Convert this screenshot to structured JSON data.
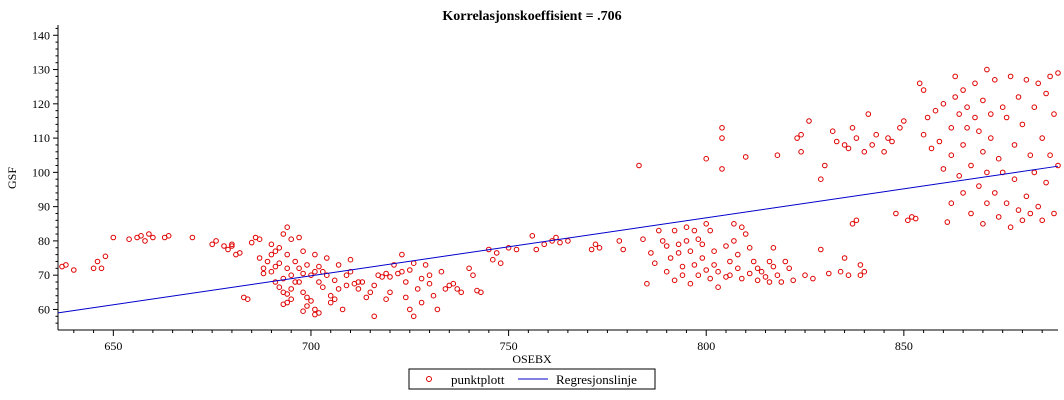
{
  "chart_data": {
    "type": "scatter",
    "title": "Korrelasjonskoeffisient =  .706",
    "xlabel": "OSEBX",
    "ylabel": "GSF",
    "xlim": [
      636,
      889
    ],
    "ylim": [
      54,
      143
    ],
    "xticks": [
      650,
      700,
      750,
      800,
      850
    ],
    "yticks": [
      60,
      70,
      80,
      90,
      100,
      110,
      120,
      130,
      140
    ],
    "legend": [
      "punktplott",
      "Regresjonslinje"
    ],
    "legend_position": "bottom",
    "grid": false,
    "colors": {
      "points": "#e00000",
      "line": "#0000cc"
    },
    "regression": {
      "x": [
        636,
        889
      ],
      "y": [
        59,
        101.8
      ]
    },
    "series": [
      {
        "name": "punktplott",
        "marker": "circle",
        "points": [
          [
            637,
            72.5
          ],
          [
            638,
            73
          ],
          [
            640,
            71.5
          ],
          [
            645,
            72
          ],
          [
            646,
            74
          ],
          [
            647,
            72
          ],
          [
            648,
            75.5
          ],
          [
            650,
            81
          ],
          [
            654,
            80.5
          ],
          [
            656,
            81
          ],
          [
            657,
            81.5
          ],
          [
            658,
            80
          ],
          [
            659,
            82
          ],
          [
            660,
            81
          ],
          [
            663,
            81
          ],
          [
            664,
            81.5
          ],
          [
            670,
            81
          ],
          [
            675,
            79
          ],
          [
            676,
            80
          ],
          [
            678,
            78.5
          ],
          [
            679,
            77.5
          ],
          [
            680,
            78.5
          ],
          [
            680,
            79
          ],
          [
            681,
            76
          ],
          [
            682,
            76.5
          ],
          [
            683,
            63.5
          ],
          [
            684,
            63
          ],
          [
            685,
            79.5
          ],
          [
            686,
            81
          ],
          [
            687,
            80.5
          ],
          [
            687,
            75
          ],
          [
            688,
            72
          ],
          [
            688,
            70.5
          ],
          [
            689,
            74
          ],
          [
            690,
            79
          ],
          [
            690,
            76
          ],
          [
            690,
            71
          ],
          [
            691,
            68
          ],
          [
            691,
            72.5
          ],
          [
            691,
            77
          ],
          [
            692,
            78
          ],
          [
            692,
            73.5
          ],
          [
            692,
            66.5
          ],
          [
            693,
            82
          ],
          [
            693,
            69
          ],
          [
            693,
            65
          ],
          [
            693,
            61.5
          ],
          [
            694,
            84
          ],
          [
            694,
            76
          ],
          [
            694,
            72
          ],
          [
            694,
            64.5
          ],
          [
            694,
            62
          ],
          [
            695,
            80.5
          ],
          [
            695,
            70
          ],
          [
            695,
            66
          ],
          [
            695,
            63
          ],
          [
            696,
            74
          ],
          [
            696,
            68
          ],
          [
            697,
            81
          ],
          [
            697,
            72
          ],
          [
            697,
            68
          ],
          [
            698,
            77
          ],
          [
            698,
            70.5
          ],
          [
            698,
            65
          ],
          [
            698,
            59.5
          ],
          [
            699,
            73
          ],
          [
            699,
            63.5
          ],
          [
            699,
            61
          ],
          [
            700,
            70
          ],
          [
            700,
            62.5
          ],
          [
            701,
            76
          ],
          [
            701,
            71
          ],
          [
            701,
            60
          ],
          [
            701,
            58.5
          ],
          [
            702,
            72.5
          ],
          [
            702,
            68
          ],
          [
            702,
            59
          ],
          [
            703,
            71
          ],
          [
            703,
            66.5
          ],
          [
            704,
            75
          ],
          [
            704,
            70
          ],
          [
            705,
            64
          ],
          [
            705,
            62
          ],
          [
            706,
            68.5
          ],
          [
            706,
            63
          ],
          [
            707,
            73
          ],
          [
            707,
            66
          ],
          [
            708,
            60
          ],
          [
            709,
            70
          ],
          [
            709,
            67
          ],
          [
            710,
            74.5
          ],
          [
            710,
            71
          ],
          [
            711,
            67.5
          ],
          [
            712,
            68
          ],
          [
            712,
            66
          ],
          [
            713,
            68
          ],
          [
            714,
            63.5
          ],
          [
            715,
            65
          ],
          [
            716,
            58
          ],
          [
            716,
            67
          ],
          [
            717,
            70
          ],
          [
            718,
            69.5
          ],
          [
            719,
            70.5
          ],
          [
            719,
            63
          ],
          [
            720,
            69.5
          ],
          [
            720,
            65
          ],
          [
            721,
            73
          ],
          [
            722,
            70.5
          ],
          [
            723,
            76
          ],
          [
            723,
            71
          ],
          [
            724,
            68
          ],
          [
            724,
            63.5
          ],
          [
            725,
            71.5
          ],
          [
            725,
            60
          ],
          [
            726,
            73.5
          ],
          [
            726,
            58
          ],
          [
            727,
            66
          ],
          [
            728,
            69
          ],
          [
            728,
            62
          ],
          [
            729,
            73
          ],
          [
            730,
            70
          ],
          [
            730,
            67.5
          ],
          [
            731,
            64
          ],
          [
            732,
            60
          ],
          [
            733,
            71
          ],
          [
            734,
            66
          ],
          [
            735,
            67
          ],
          [
            736,
            67.5
          ],
          [
            737,
            66
          ],
          [
            738,
            65
          ],
          [
            740,
            72
          ],
          [
            741,
            70
          ],
          [
            742,
            65.5
          ],
          [
            743,
            65
          ],
          [
            745,
            77.5
          ],
          [
            746,
            74.5
          ],
          [
            747,
            76.5
          ],
          [
            748,
            73.5
          ],
          [
            750,
            78
          ],
          [
            752,
            77.5
          ],
          [
            756,
            81.5
          ],
          [
            757,
            77.5
          ],
          [
            759,
            79
          ],
          [
            761,
            80
          ],
          [
            762,
            81
          ],
          [
            763,
            79.5
          ],
          [
            765,
            80
          ],
          [
            771,
            77.5
          ],
          [
            772,
            79
          ],
          [
            773,
            78
          ],
          [
            778,
            80
          ],
          [
            779,
            77.5
          ],
          [
            783,
            102
          ],
          [
            784,
            80.5
          ],
          [
            785,
            67.5
          ],
          [
            786,
            76.5
          ],
          [
            787,
            73.5
          ],
          [
            788,
            83
          ],
          [
            789,
            80
          ],
          [
            790,
            78.5
          ],
          [
            790,
            71
          ],
          [
            791,
            75
          ],
          [
            792,
            83
          ],
          [
            792,
            68.5
          ],
          [
            793,
            79
          ],
          [
            793,
            76.5
          ],
          [
            794,
            72.5
          ],
          [
            794,
            70
          ],
          [
            795,
            84
          ],
          [
            795,
            80
          ],
          [
            796,
            77
          ],
          [
            796,
            67.5
          ],
          [
            797,
            83
          ],
          [
            797,
            73
          ],
          [
            798,
            80.5
          ],
          [
            798,
            70
          ],
          [
            799,
            79
          ],
          [
            799,
            75
          ],
          [
            800,
            85
          ],
          [
            800,
            71.5
          ],
          [
            800,
            104
          ],
          [
            801,
            83
          ],
          [
            801,
            69
          ],
          [
            802,
            77
          ],
          [
            802,
            73
          ],
          [
            803,
            71
          ],
          [
            803,
            66.5
          ],
          [
            804,
            110
          ],
          [
            804,
            113
          ],
          [
            804,
            101
          ],
          [
            805,
            78.5
          ],
          [
            805,
            69.5
          ],
          [
            806,
            74
          ],
          [
            806,
            70
          ],
          [
            807,
            85
          ],
          [
            807,
            80
          ],
          [
            808,
            76
          ],
          [
            808,
            72
          ],
          [
            809,
            84
          ],
          [
            809,
            69
          ],
          [
            810,
            82
          ],
          [
            810,
            104.5
          ],
          [
            811,
            78
          ],
          [
            811,
            70.5
          ],
          [
            812,
            74
          ],
          [
            813,
            72
          ],
          [
            813,
            68.5
          ],
          [
            814,
            71
          ],
          [
            815,
            69.5
          ],
          [
            816,
            74
          ],
          [
            816,
            68
          ],
          [
            817,
            78
          ],
          [
            817,
            72.5
          ],
          [
            818,
            70
          ],
          [
            818,
            105
          ],
          [
            819,
            68
          ],
          [
            820,
            74
          ],
          [
            821,
            72
          ],
          [
            822,
            68.5
          ],
          [
            823,
            110
          ],
          [
            824,
            111
          ],
          [
            824,
            106
          ],
          [
            825,
            70
          ],
          [
            826,
            115
          ],
          [
            827,
            69
          ],
          [
            829,
            77.5
          ],
          [
            829,
            98
          ],
          [
            830,
            102
          ],
          [
            831,
            70.5
          ],
          [
            832,
            112
          ],
          [
            833,
            109
          ],
          [
            834,
            71
          ],
          [
            835,
            108
          ],
          [
            835,
            75
          ],
          [
            836,
            107
          ],
          [
            836,
            70
          ],
          [
            837,
            113
          ],
          [
            837,
            85
          ],
          [
            838,
            110
          ],
          [
            838,
            86
          ],
          [
            839,
            73
          ],
          [
            839,
            70
          ],
          [
            840,
            106
          ],
          [
            840,
            71
          ],
          [
            841,
            117
          ],
          [
            842,
            108
          ],
          [
            843,
            111
          ],
          [
            845,
            106
          ],
          [
            846,
            110
          ],
          [
            847,
            109
          ],
          [
            848,
            88
          ],
          [
            849,
            113
          ],
          [
            850,
            115
          ],
          [
            851,
            86
          ],
          [
            852,
            87
          ],
          [
            853,
            86.5
          ],
          [
            854,
            126
          ],
          [
            855,
            124
          ],
          [
            855,
            111
          ],
          [
            856,
            116
          ],
          [
            857,
            107
          ],
          [
            858,
            118
          ],
          [
            859,
            109
          ],
          [
            860,
            120
          ],
          [
            860,
            101
          ],
          [
            861,
            85.5
          ],
          [
            862,
            113
          ],
          [
            862,
            105
          ],
          [
            862,
            91
          ],
          [
            863,
            128
          ],
          [
            863,
            122
          ],
          [
            864,
            117
          ],
          [
            864,
            99
          ],
          [
            865,
            124
          ],
          [
            865,
            108
          ],
          [
            865,
            94
          ],
          [
            866,
            119
          ],
          [
            866,
            113
          ],
          [
            867,
            102
          ],
          [
            867,
            88
          ],
          [
            868,
            126
          ],
          [
            868,
            116
          ],
          [
            869,
            112
          ],
          [
            869,
            96
          ],
          [
            870,
            121
          ],
          [
            870,
            106
          ],
          [
            870,
            85
          ],
          [
            871,
            130
          ],
          [
            871,
            100
          ],
          [
            871,
            91
          ],
          [
            872,
            117
          ],
          [
            872,
            110
          ],
          [
            873,
            127
          ],
          [
            873,
            94
          ],
          [
            874,
            104
          ],
          [
            874,
            87
          ],
          [
            875,
            119
          ],
          [
            875,
            100
          ],
          [
            876,
            116
          ],
          [
            876,
            91
          ],
          [
            877,
            128
          ],
          [
            877,
            84
          ],
          [
            878,
            108
          ],
          [
            878,
            98
          ],
          [
            879,
            122
          ],
          [
            879,
            89
          ],
          [
            880,
            114
          ],
          [
            880,
            86
          ],
          [
            881,
            127
          ],
          [
            881,
            93
          ],
          [
            882,
            105
          ],
          [
            882,
            88
          ],
          [
            883,
            119
          ],
          [
            883,
            100
          ],
          [
            884,
            126
          ],
          [
            884,
            90
          ],
          [
            885,
            110
          ],
          [
            885,
            86
          ],
          [
            886,
            123
          ],
          [
            886,
            97
          ],
          [
            887,
            128
          ],
          [
            887,
            105
          ],
          [
            888,
            117
          ],
          [
            888,
            88
          ],
          [
            889,
            102
          ],
          [
            889,
            129
          ]
        ]
      },
      {
        "name": "Regresjonslinje",
        "type": "line"
      }
    ]
  }
}
